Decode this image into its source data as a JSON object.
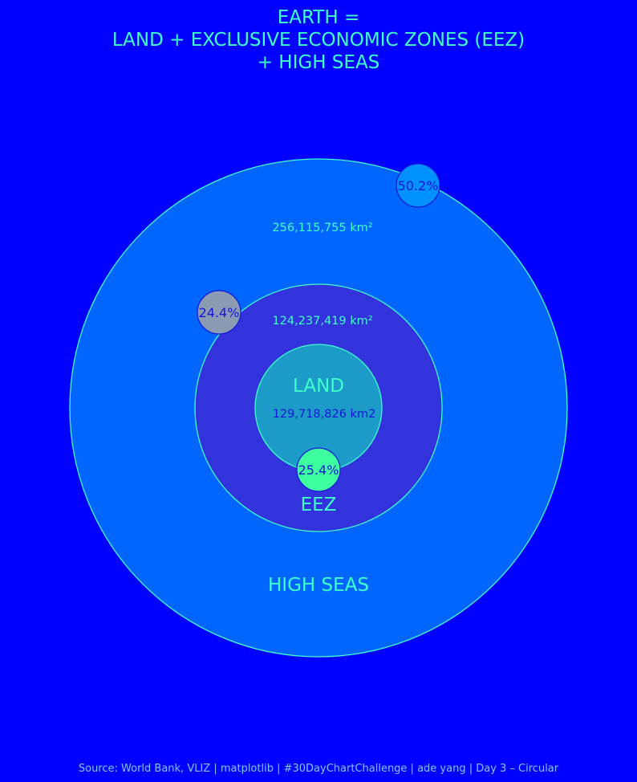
{
  "chart_data": {
    "type": "circular",
    "title_lines": [
      "EARTH =",
      "LAND + EXCLUSIVE ECONOMIC ZONES (EEZ)",
      "+ HIGH SEAS"
    ],
    "regions": [
      {
        "key": "high_seas",
        "name": "HIGH SEAS",
        "area_label": "256,115,755 km²",
        "percent_label": "50.2%",
        "fill": "#0066ff",
        "badge_fill": "#0091ff"
      },
      {
        "key": "eez",
        "name": "EEZ",
        "area_label": "124,237,419 km²",
        "percent_label": "24.4%",
        "fill": "#3333dd",
        "badge_fill": "#8c9bb4"
      },
      {
        "key": "land",
        "name": "LAND",
        "area_label": "129,718,826 km2",
        "percent_label": "25.4%",
        "fill": "#1c9bc8",
        "badge_fill": "#3dffa0"
      }
    ],
    "source": "Source: World Bank, VLIZ | matplotlib | #30DayChartChallenge | ade yang | Day 3 – Circular"
  },
  "colors": {
    "background": "#0000ff",
    "title": "#3dffc8",
    "outline": "#3dffc8",
    "badge_text": "#1515d8",
    "source_text": "#7ec8ff"
  }
}
